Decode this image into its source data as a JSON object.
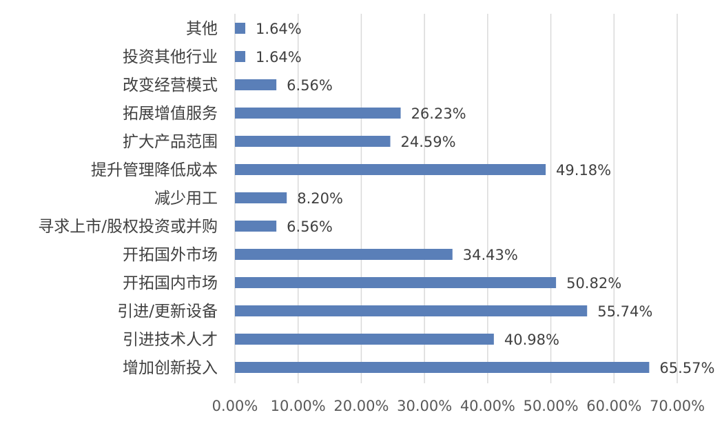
{
  "chart_data": {
    "type": "bar",
    "orientation": "horizontal",
    "categories": [
      "其他",
      "投资其他行业",
      "改变经营模式",
      "拓展增值服务",
      "扩大产品范围",
      "提升管理降低成本",
      "减少用工",
      "寻求上市/股权投资或并购",
      "开拓国外市场",
      "开拓国内市场",
      "引进/更新设备",
      "引进技术人才",
      "增加创新投入"
    ],
    "values": [
      1.64,
      1.64,
      6.56,
      26.23,
      24.59,
      49.18,
      8.2,
      6.56,
      34.43,
      50.82,
      55.74,
      40.98,
      65.57
    ],
    "value_labels": [
      "1.64%",
      "1.64%",
      "6.56%",
      "26.23%",
      "24.59%",
      "49.18%",
      "8.20%",
      "6.56%",
      "34.43%",
      "50.82%",
      "55.74%",
      "40.98%",
      "65.57%"
    ],
    "xlim": [
      0,
      70
    ],
    "x_ticks": [
      0,
      10,
      20,
      30,
      40,
      50,
      60,
      70
    ],
    "x_tick_labels": [
      "0.00%",
      "10.00%",
      "20.00%",
      "30.00%",
      "40.00%",
      "50.00%",
      "60.00%",
      "70.00%"
    ],
    "bar_color": "#5A7FB8",
    "grid": true,
    "title": "",
    "xlabel": "",
    "ylabel": ""
  }
}
